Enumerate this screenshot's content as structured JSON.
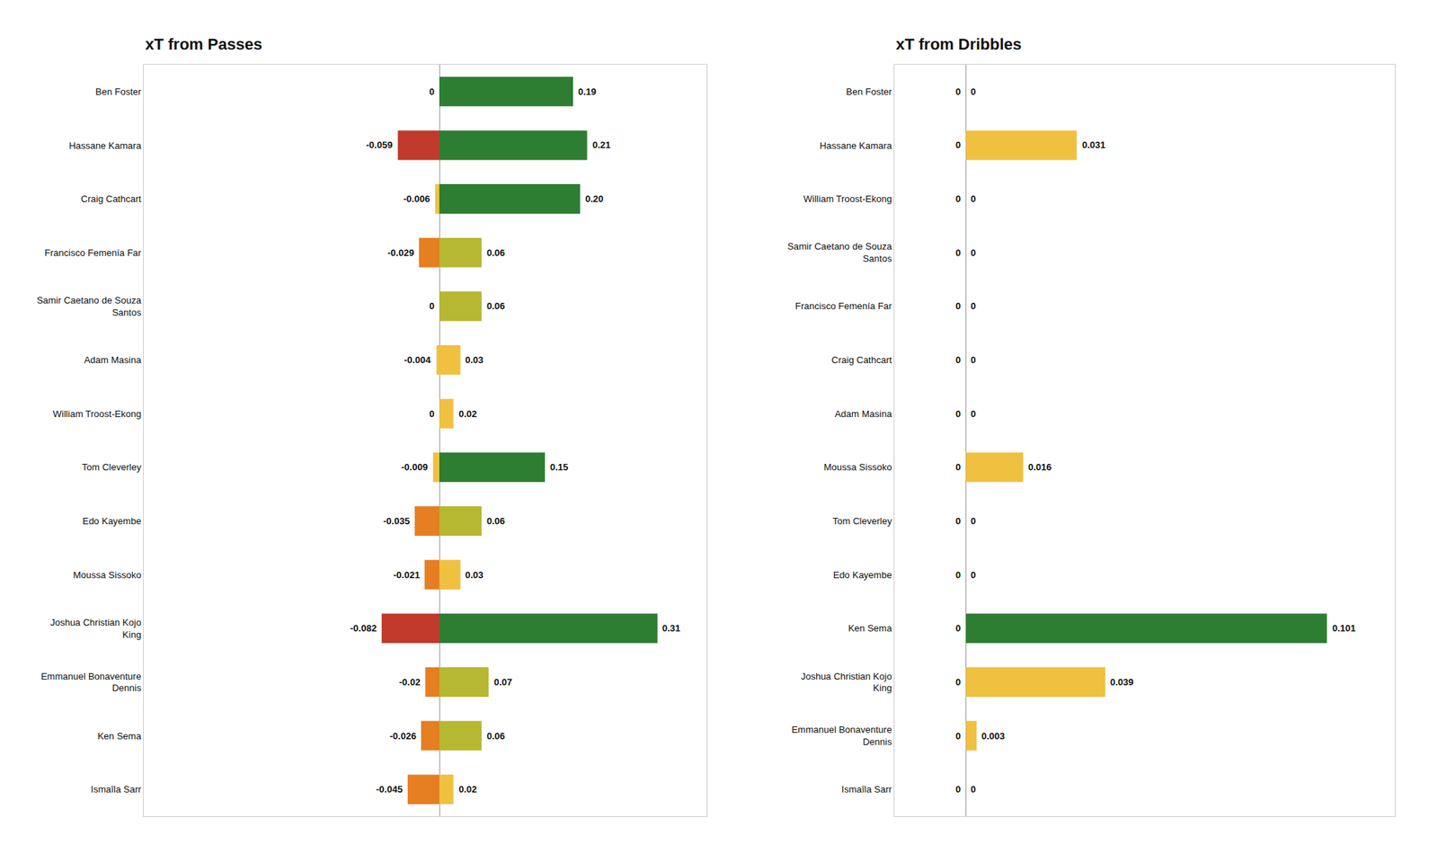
{
  "chart_data": [
    {
      "type": "bar",
      "orientation": "horizontal",
      "title": "xT from Passes",
      "categories": [
        "Ben Foster",
        "Hassane Kamara",
        "Craig Cathcart",
        "Francisco Femenía Far",
        "Samir Caetano de Souza\nSantos",
        "Adam Masina",
        "William Troost-Ekong",
        "Tom Cleverley",
        "Edo Kayembe",
        "Moussa Sissoko",
        "Joshua Christian Kojo\nKing",
        "Emmanuel Bonaventure\nDennis",
        "Ken Sema",
        "Ismaîla Sarr"
      ],
      "series": [
        {
          "values": [
            0,
            -0.059,
            -0.006,
            -0.029,
            0,
            -0.004,
            0,
            -0.009,
            -0.035,
            -0.021,
            -0.082,
            -0.02,
            -0.026,
            -0.045
          ],
          "value_labels": [
            "0",
            "-0.059",
            "-0.006",
            "-0.029",
            "0",
            "-0.004",
            "0",
            "-0.009",
            "-0.035",
            "-0.021",
            "-0.082",
            "-0.02",
            "-0.026",
            "-0.045"
          ],
          "colors": [
            "#f0c040",
            "#c0392b",
            "#f0c040",
            "#e67e22",
            "#f0c040",
            "#f0c040",
            "#f0c040",
            "#f0c040",
            "#e67e22",
            "#e67e22",
            "#c0392b",
            "#e67e22",
            "#e67e22",
            "#e67e22"
          ]
        },
        {
          "values": [
            0.19,
            0.21,
            0.2,
            0.06,
            0.06,
            0.03,
            0.02,
            0.15,
            0.06,
            0.03,
            0.31,
            0.07,
            0.06,
            0.02
          ],
          "value_labels": [
            "0.19",
            "0.21",
            "0.20",
            "0.06",
            "0.06",
            "0.03",
            "0.02",
            "0.15",
            "0.06",
            "0.03",
            "0.31",
            "0.07",
            "0.06",
            "0.02"
          ],
          "colors": [
            "#2d7d32",
            "#2d7d32",
            "#2d7d32",
            "#b5b830",
            "#b5b830",
            "#f0c040",
            "#f0c040",
            "#2d7d32",
            "#b5b830",
            "#f0c040",
            "#2d7d32",
            "#b5b830",
            "#b5b830",
            "#f0c040"
          ]
        }
      ],
      "xlim": [
        -0.42,
        0.38
      ],
      "data_labels": true,
      "tick_labels": "y",
      "grid": false
    },
    {
      "type": "bar",
      "orientation": "horizontal",
      "title": "xT from Dribbles",
      "categories": [
        "Ben Foster",
        "Hassane Kamara",
        "William Troost-Ekong",
        "Samir Caetano de Souza\nSantos",
        "Francisco Femenía Far",
        "Craig Cathcart",
        "Adam Masina",
        "Moussa Sissoko",
        "Tom Cleverley",
        "Edo Kayembe",
        "Ken Sema",
        "Joshua Christian Kojo\nKing",
        "Emmanuel Bonaventure\nDennis",
        "Ismaîla Sarr"
      ],
      "series": [
        {
          "values": [
            0,
            0,
            0,
            0,
            0,
            0,
            0,
            0,
            0,
            0,
            0,
            0,
            0,
            0
          ],
          "value_labels": [
            "0",
            "0",
            "0",
            "0",
            "0",
            "0",
            "0",
            "0",
            "0",
            "0",
            "0",
            "0",
            "0",
            "0"
          ],
          "colors": [
            "#f0c040",
            "#f0c040",
            "#f0c040",
            "#f0c040",
            "#f0c040",
            "#f0c040",
            "#f0c040",
            "#f0c040",
            "#f0c040",
            "#f0c040",
            "#f0c040",
            "#f0c040",
            "#f0c040",
            "#f0c040"
          ]
        },
        {
          "values": [
            0,
            0.031,
            0,
            0,
            0,
            0,
            0,
            0.016,
            0,
            0,
            0.101,
            0.039,
            0.003,
            0
          ],
          "value_labels": [
            "0",
            "0.031",
            "0",
            "0",
            "0",
            "0",
            "0",
            "0.016",
            "0",
            "0",
            "0.101",
            "0.039",
            "0.003",
            "0"
          ],
          "colors": [
            "#f0c040",
            "#f0c040",
            "#f0c040",
            "#f0c040",
            "#f0c040",
            "#f0c040",
            "#f0c040",
            "#f0c040",
            "#f0c040",
            "#f0c040",
            "#2d7d32",
            "#f0c040",
            "#f0c040",
            "#f0c040"
          ]
        }
      ],
      "xlim": [
        -0.02,
        0.12
      ],
      "data_labels": true,
      "tick_labels": "y",
      "grid": false
    }
  ]
}
